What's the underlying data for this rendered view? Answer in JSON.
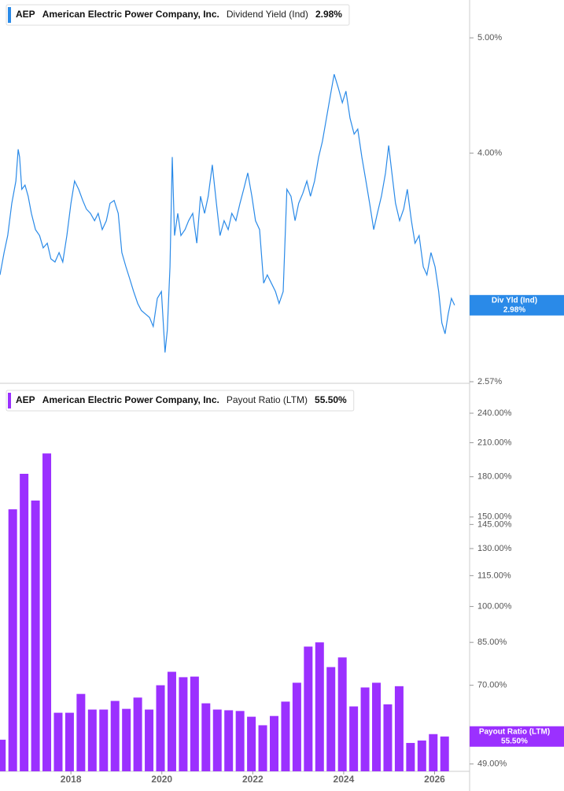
{
  "chart_data": [
    {
      "type": "line",
      "ticker": "AEP",
      "company": "American Electric Power Company, Inc.",
      "metric": "Dividend Yield (Ind)",
      "current_label": "2.98%",
      "badge_name": "Div Yld (Ind)",
      "color": "#2a8ae8",
      "log_scale": true,
      "xlim": [
        2016.44,
        2026.77
      ],
      "ylim": [
        2.57,
        5.38
      ],
      "yticks": [
        {
          "value": 5,
          "label": "5.00%"
        },
        {
          "value": 4,
          "label": "4.00%"
        },
        {
          "value": 2.57,
          "label": "2.57%"
        }
      ],
      "x": [
        2016.44,
        2016.53,
        2016.61,
        2016.7,
        2016.79,
        2016.84,
        2016.87,
        2016.92,
        2016.99,
        2017.06,
        2017.13,
        2017.22,
        2017.31,
        2017.39,
        2017.48,
        2017.56,
        2017.65,
        2017.74,
        2017.82,
        2017.91,
        2018.0,
        2018.08,
        2018.17,
        2018.26,
        2018.34,
        2018.43,
        2018.52,
        2018.6,
        2018.69,
        2018.78,
        2018.86,
        2018.95,
        2019.04,
        2019.12,
        2019.21,
        2019.29,
        2019.38,
        2019.47,
        2019.55,
        2019.64,
        2019.73,
        2019.81,
        2019.9,
        2019.99,
        2020.07,
        2020.12,
        2020.18,
        2020.23,
        2020.28,
        2020.35,
        2020.42,
        2020.51,
        2020.59,
        2020.68,
        2020.77,
        2020.85,
        2020.94,
        2021.02,
        2021.11,
        2021.2,
        2021.28,
        2021.37,
        2021.46,
        2021.54,
        2021.63,
        2021.72,
        2021.8,
        2021.89,
        2021.98,
        2022.06,
        2022.15,
        2022.24,
        2022.32,
        2022.41,
        2022.5,
        2022.58,
        2022.67,
        2022.75,
        2022.84,
        2022.93,
        2023.01,
        2023.1,
        2023.19,
        2023.27,
        2023.36,
        2023.45,
        2023.53,
        2023.62,
        2023.71,
        2023.79,
        2023.88,
        2023.97,
        2024.05,
        2024.14,
        2024.23,
        2024.31,
        2024.4,
        2024.49,
        2024.57,
        2024.66,
        2024.74,
        2024.83,
        2024.92,
        2024.99,
        2025.06,
        2025.14,
        2025.23,
        2025.32,
        2025.4,
        2025.49,
        2025.57,
        2025.66,
        2025.75,
        2025.83,
        2025.92,
        2026.01,
        2026.09,
        2026.16,
        2026.23,
        2026.3,
        2026.37,
        2026.44
      ],
      "values": [
        3.16,
        3.3,
        3.41,
        3.63,
        3.79,
        4.03,
        3.97,
        3.73,
        3.76,
        3.68,
        3.56,
        3.45,
        3.41,
        3.33,
        3.36,
        3.26,
        3.24,
        3.3,
        3.24,
        3.41,
        3.63,
        3.79,
        3.73,
        3.65,
        3.59,
        3.56,
        3.51,
        3.56,
        3.45,
        3.51,
        3.63,
        3.65,
        3.56,
        3.3,
        3.21,
        3.14,
        3.06,
        2.99,
        2.95,
        2.93,
        2.91,
        2.86,
        3.02,
        3.06,
        2.72,
        2.84,
        3.21,
        3.97,
        3.41,
        3.56,
        3.41,
        3.45,
        3.51,
        3.56,
        3.36,
        3.68,
        3.56,
        3.68,
        3.91,
        3.63,
        3.41,
        3.51,
        3.45,
        3.56,
        3.51,
        3.63,
        3.73,
        3.85,
        3.68,
        3.51,
        3.45,
        3.11,
        3.16,
        3.11,
        3.06,
        2.99,
        3.06,
        3.73,
        3.68,
        3.51,
        3.63,
        3.7,
        3.79,
        3.68,
        3.79,
        3.97,
        4.09,
        4.28,
        4.48,
        4.66,
        4.54,
        4.41,
        4.51,
        4.28,
        4.15,
        4.19,
        3.97,
        3.79,
        3.63,
        3.45,
        3.56,
        3.68,
        3.85,
        4.06,
        3.85,
        3.63,
        3.51,
        3.59,
        3.73,
        3.51,
        3.36,
        3.41,
        3.21,
        3.16,
        3.3,
        3.21,
        3.06,
        2.88,
        2.82,
        2.93,
        3.02,
        2.98
      ]
    },
    {
      "type": "bar",
      "ticker": "AEP",
      "company": "American Electric Power Company, Inc.",
      "metric": "Payout Ratio (LTM)",
      "current_label": "55.50%",
      "badge_name": "Payout Ratio (LTM)",
      "color": "#9b30ff",
      "log_scale": true,
      "xlim": [
        2016.44,
        2026.77
      ],
      "ylim": [
        47.4,
        269
      ],
      "xticks": [
        2018,
        2020,
        2022,
        2024,
        2026
      ],
      "yticks": [
        {
          "value": 240,
          "label": "240.00%"
        },
        {
          "value": 210,
          "label": "210.00%"
        },
        {
          "value": 180,
          "label": "180.00%"
        },
        {
          "value": 150,
          "label": "150.00%"
        },
        {
          "value": 145,
          "label": "145.00%"
        },
        {
          "value": 130,
          "label": "130.00%"
        },
        {
          "value": 115,
          "label": "115.00%"
        },
        {
          "value": 100,
          "label": "100.00%"
        },
        {
          "value": 85,
          "label": "85.00%"
        },
        {
          "value": 70,
          "label": "70.00%"
        },
        {
          "value": 49,
          "label": "49.00%"
        }
      ],
      "x": [
        2016.47,
        2016.72,
        2016.97,
        2017.22,
        2017.47,
        2017.72,
        2017.97,
        2018.22,
        2018.47,
        2018.72,
        2018.97,
        2019.22,
        2019.47,
        2019.72,
        2019.97,
        2020.22,
        2020.47,
        2020.72,
        2020.97,
        2021.22,
        2021.47,
        2021.72,
        2021.97,
        2022.22,
        2022.47,
        2022.72,
        2022.97,
        2023.22,
        2023.47,
        2023.72,
        2023.97,
        2024.22,
        2024.47,
        2024.72,
        2024.97,
        2025.22,
        2025.47,
        2025.72,
        2025.97,
        2026.22
      ],
      "values": [
        54.7,
        155.3,
        182.4,
        161.6,
        200,
        61.8,
        61.8,
        67.3,
        62.7,
        62.7,
        65.2,
        62.9,
        66.2,
        62.7,
        70.0,
        74.4,
        72.6,
        72.8,
        64.5,
        62.7,
        62.5,
        62.3,
        60.7,
        58.4,
        60.9,
        65.0,
        70.8,
        83.4,
        85.0,
        76.0,
        79.4,
        63.6,
        69.3,
        70.8,
        64.2,
        69.7,
        53.9,
        54.5,
        56.1,
        55.5
      ]
    }
  ]
}
